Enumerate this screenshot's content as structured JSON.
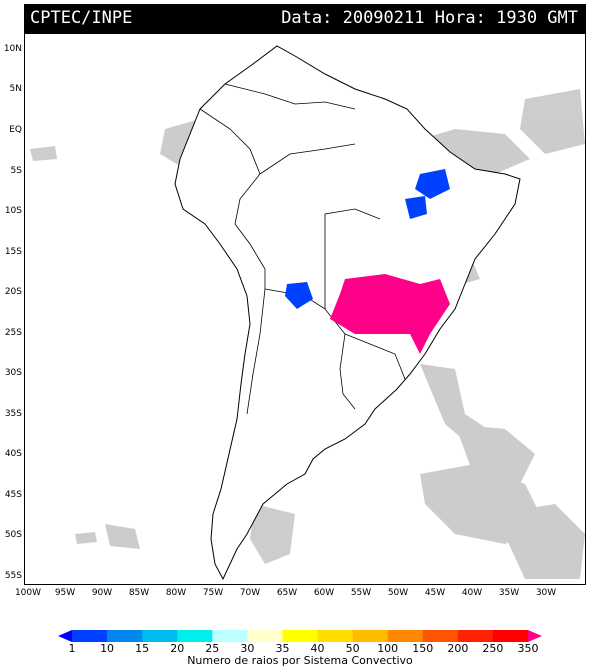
{
  "header": {
    "source": "CPTEC/INPE",
    "datetime": "Data: 20090211 Hora: 1930 GMT"
  },
  "map": {
    "lat_labels": [
      "10N",
      "5N",
      "EQ",
      "5S",
      "10S",
      "15S",
      "20S",
      "25S",
      "30S",
      "35S",
      "40S",
      "45S",
      "50S",
      "55S"
    ],
    "lon_labels": [
      "100W",
      "95W",
      "90W",
      "85W",
      "80W",
      "75W",
      "70W",
      "65W",
      "60W",
      "55W",
      "50W",
      "45W",
      "40W",
      "35W",
      "30W"
    ],
    "land_color": "#ffffff",
    "border_color": "#000000",
    "cloud_color": "#c4c4c4"
  },
  "legend": {
    "title": "Numero de raios por Sistema Convectivo",
    "ticks": [
      "1",
      "10",
      "15",
      "20",
      "25",
      "30",
      "35",
      "40",
      "50",
      "100",
      "150",
      "200",
      "250",
      "350"
    ],
    "colors": [
      "#0000ff",
      "#0040ff",
      "#0088ee",
      "#00bbee",
      "#00eeee",
      "#bbffff",
      "#ffffcc",
      "#ffff00",
      "#ffdd00",
      "#ffbb00",
      "#ff8800",
      "#ff5500",
      "#ff2200",
      "#ff0000",
      "#ff0088"
    ]
  }
}
